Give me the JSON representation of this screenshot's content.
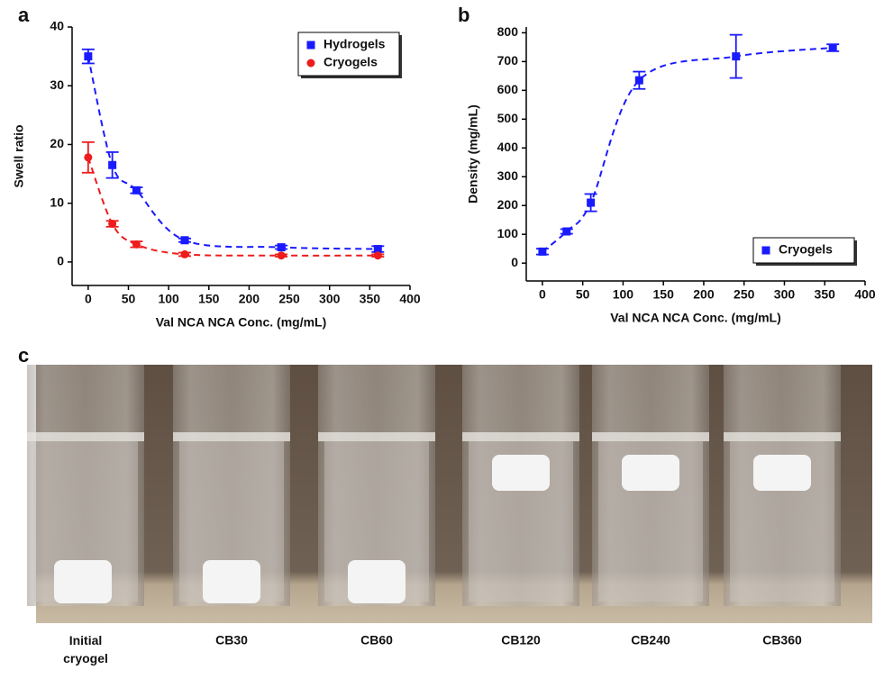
{
  "chart_data": [
    {
      "type": "scatter",
      "panel": "a",
      "y_label": "Swell ratio",
      "x_label": "Val NCA NCA Conc. (mg/mL)",
      "x": [
        0,
        30,
        60,
        120,
        240,
        360
      ],
      "series": [
        {
          "name": "Hydrogels",
          "color": "#1a1aff",
          "marker": "square",
          "values": [
            35,
            16.5,
            12.2,
            3.7,
            2.5,
            2.2
          ],
          "errors": [
            1.2,
            2.2,
            0.5,
            0.3,
            0.3,
            0.5
          ]
        },
        {
          "name": "Cryogels",
          "color": "#ee1c1c",
          "marker": "circle",
          "values": [
            17.8,
            6.5,
            3,
            1.3,
            1.1,
            1.1
          ],
          "errors": [
            2.6,
            0.5,
            0.5,
            0.3,
            0.2,
            0.2
          ]
        }
      ],
      "xlim": [
        -20,
        400
      ],
      "xticks": [
        0,
        50,
        100,
        150,
        200,
        250,
        300,
        350,
        400
      ],
      "ylim": [
        -4,
        40
      ],
      "yticks": [
        0,
        10,
        20,
        30,
        40
      ],
      "legend": "top-right"
    },
    {
      "type": "scatter",
      "panel": "b",
      "y_label": "Density (mg/mL)",
      "x_label": "Val NCA NCA Conc. (mg/mL)",
      "x": [
        0,
        30,
        60,
        120,
        240,
        360
      ],
      "series": [
        {
          "name": "Cryogels",
          "color": "#1a1aff",
          "marker": "square",
          "values": [
            40,
            110,
            210,
            635,
            718,
            748
          ],
          "errors": [
            10,
            8,
            30,
            30,
            75,
            12
          ]
        }
      ],
      "xlim": [
        -20,
        400
      ],
      "xticks": [
        0,
        50,
        100,
        150,
        200,
        250,
        300,
        350,
        400
      ],
      "ylim": [
        -62,
        820
      ],
      "yticks": [
        0,
        100,
        200,
        300,
        400,
        500,
        600,
        700,
        800
      ],
      "legend": "bottom-right"
    }
  ],
  "photo": {
    "panel": "c",
    "labels": [
      "Initial cryogel",
      "CB30",
      "CB60",
      "CB120",
      "CB240",
      "CB360"
    ]
  }
}
